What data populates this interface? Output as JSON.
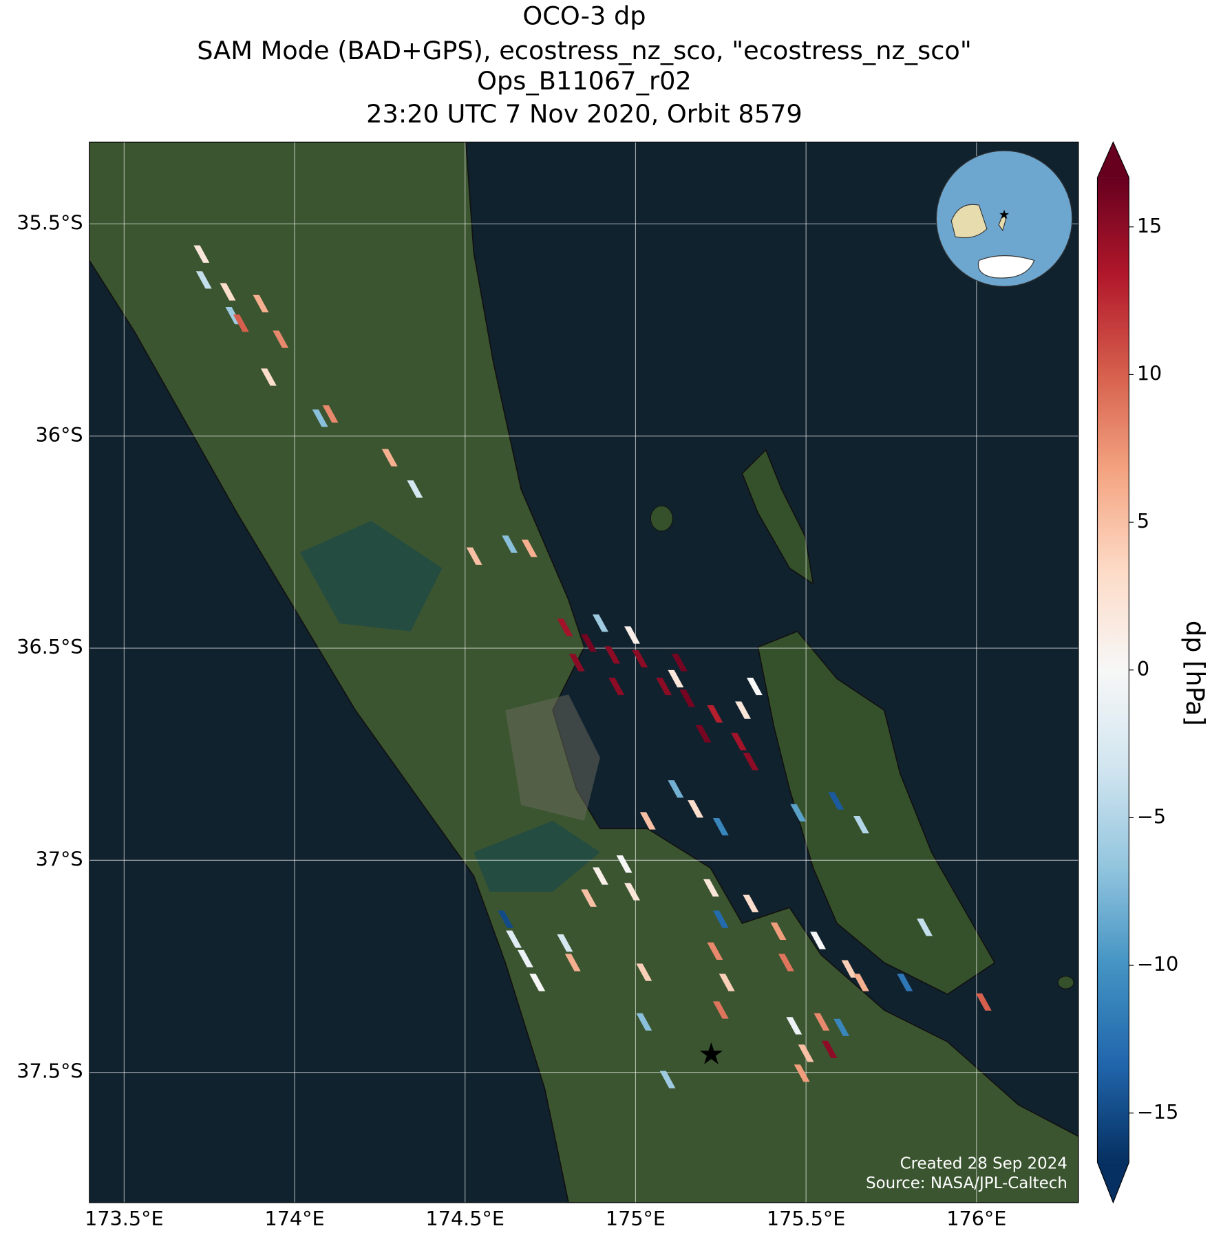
{
  "chart_data": {
    "type": "map",
    "title": [
      "OCO-3 dp",
      "SAM Mode (BAD+GPS), ecostress_nz_sco, \"ecostress_nz_sco\"",
      "Ops_B11067_r02",
      "23:20 UTC 7 Nov 2020, Orbit 8579"
    ],
    "xlim": [
      173.398,
      176.299
    ],
    "ylim": [
      -37.807,
      -35.307
    ],
    "xticks": [
      {
        "value": 173.5,
        "label": "173.5°E"
      },
      {
        "value": 174,
        "label": "174°E"
      },
      {
        "value": 174.5,
        "label": "174.5°E"
      },
      {
        "value": 175,
        "label": "175°E"
      },
      {
        "value": 175.5,
        "label": "175.5°E"
      },
      {
        "value": 176,
        "label": "176°E"
      }
    ],
    "yticks": [
      {
        "value": -35.5,
        "label": "35.5°S"
      },
      {
        "value": -36,
        "label": "36°S"
      },
      {
        "value": -36.5,
        "label": "36.5°S"
      },
      {
        "value": -37,
        "label": "37°S"
      },
      {
        "value": -37.5,
        "label": "37.5°S"
      }
    ],
    "grid": true,
    "colorbar": {
      "label": "dp [hPa]",
      "clim": [
        -16.67,
        16.67
      ],
      "ticks": [
        {
          "value": -15,
          "label": "−15"
        },
        {
          "value": -10,
          "label": "−10"
        },
        {
          "value": -5,
          "label": "−5"
        },
        0,
        5,
        10,
        15
      ],
      "colormap": [
        "#053061",
        "#2166ac",
        "#4393c3",
        "#92c5de",
        "#d1e5f0",
        "#f7f7f7",
        "#fddbc7",
        "#f4a582",
        "#d6604d",
        "#b2182b",
        "#67001f"
      ]
    },
    "soundings": {
      "lon": [
        173.727,
        173.734,
        173.804,
        173.82,
        173.843,
        173.901,
        173.959,
        173.924,
        174.075,
        174.105,
        174.279,
        174.353,
        174.527,
        174.631,
        174.689,
        174.793,
        174.863,
        174.897,
        174.932,
        174.99,
        175.013,
        175.083,
        175.118,
        175.152,
        175.233,
        175.315,
        175.349,
        175.303,
        175.338,
        174.944,
        174.828,
        175.129,
        175.199,
        175.118,
        175.176,
        175.25,
        175.036,
        175.477,
        175.588,
        175.662,
        174.967,
        174.897,
        174.99,
        174.863,
        174.619,
        174.643,
        174.677,
        174.712,
        174.793,
        174.816,
        175.025,
        175.222,
        175.25,
        175.233,
        175.268,
        175.25,
        175.025,
        175.338,
        175.419,
        175.442,
        175.535,
        175.627,
        175.662,
        175.79,
        175.848,
        176.021,
        175.465,
        175.546,
        175.604,
        175.5,
        175.569,
        175.488,
        175.094
      ],
      "lat": [
        -35.571,
        -35.632,
        -35.66,
        -35.716,
        -35.734,
        -35.688,
        -35.772,
        -35.861,
        -35.958,
        -35.948,
        -36.051,
        -36.125,
        -36.283,
        -36.255,
        -36.265,
        -36.451,
        -36.488,
        -36.441,
        -36.516,
        -36.469,
        -36.525,
        -36.59,
        -36.572,
        -36.618,
        -36.655,
        -36.646,
        -36.59,
        -36.72,
        -36.767,
        -36.59,
        -36.534,
        -36.534,
        -36.702,
        -36.832,
        -36.879,
        -36.921,
        -36.907,
        -36.888,
        -36.86,
        -36.916,
        -37.009,
        -37.037,
        -37.074,
        -37.089,
        -37.139,
        -37.186,
        -37.232,
        -37.288,
        -37.195,
        -37.241,
        -37.264,
        -37.065,
        -37.139,
        -37.214,
        -37.288,
        -37.353,
        -37.381,
        -37.102,
        -37.167,
        -37.241,
        -37.189,
        -37.256,
        -37.288,
        -37.288,
        -37.158,
        -37.334,
        -37.39,
        -37.381,
        -37.394,
        -37.455,
        -37.446,
        -37.502,
        -37.517
      ],
      "dp": [
        2,
        -4,
        3,
        -6,
        10,
        6,
        8,
        3,
        -7,
        8,
        6,
        -3,
        5,
        -7,
        6,
        14,
        16,
        -6,
        15,
        1,
        15,
        15,
        2,
        16,
        13,
        2,
        0,
        14,
        15,
        15,
        15,
        16,
        16,
        -8,
        3,
        -11,
        5,
        -9,
        -14,
        -5,
        0,
        1,
        2,
        5,
        -15,
        -2,
        -1,
        0,
        -3,
        6,
        4,
        2,
        -13,
        8,
        4,
        9,
        -7,
        3,
        7,
        9,
        0,
        4,
        6,
        -12,
        -4,
        10,
        -1,
        8,
        -11,
        5,
        15,
        7,
        -6
      ]
    },
    "target": {
      "lon": 175.222,
      "lat": -37.461
    },
    "annotations": [
      "Created 28 Sep 2024",
      "Source: NASA/JPL-Caltech"
    ]
  }
}
